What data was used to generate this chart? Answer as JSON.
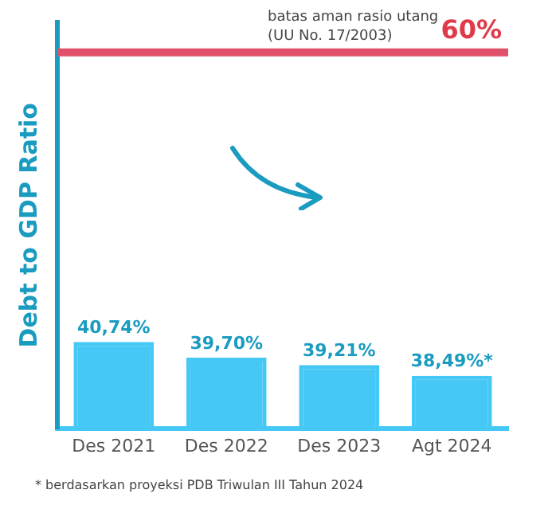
{
  "chart_data": {
    "type": "bar",
    "ylabel": "Debt to GDP Ratio",
    "categories": [
      "Des 2021",
      "Des 2022",
      "Des 2023",
      "Agt 2024"
    ],
    "series": [
      {
        "color": "#45c8f5",
        "colors": [
          "#45c8f5",
          "#45c8f5",
          "#45c8f5",
          "#45c8f5"
        ],
        "values": [
          40.74,
          39.7,
          39.21,
          38.49
        ],
        "value_labels": [
          "40,74%",
          "39,70%",
          "39,21%",
          "38,49%*"
        ]
      }
    ],
    "ylim": [
      35,
      62
    ],
    "tick_labels": "x",
    "grid": false,
    "legend": false,
    "ref_lines": [
      {
        "axis": "y",
        "value": 60,
        "label": "batas aman rasio utang (UU No. 17/2003)",
        "color": "#e0506a"
      }
    ],
    "annotations": [
      {
        "text": "60%",
        "y": 60
      },
      "* berdasarkan proyeksi PDB Triwulan III Tahun 2024"
    ]
  }
}
